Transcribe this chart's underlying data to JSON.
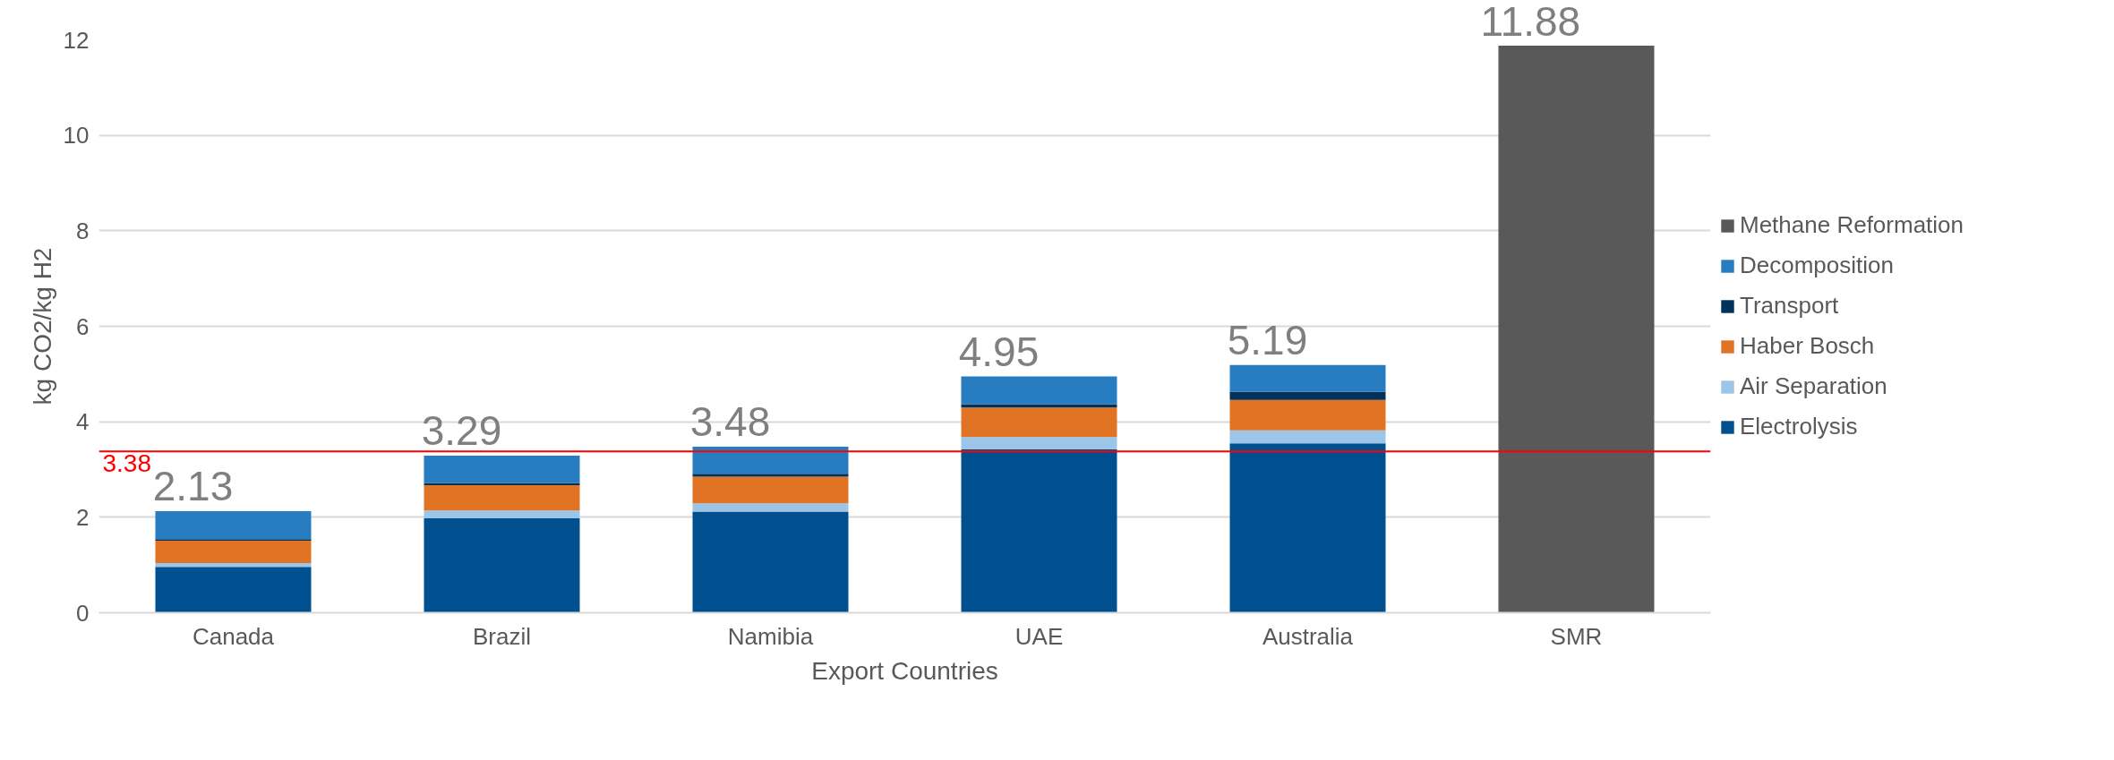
{
  "chart_data": {
    "type": "bar",
    "stacked": true,
    "xlabel": "Export Countries",
    "ylabel": "kg CO2/kg H2",
    "categories": [
      "Canada",
      "Brazil",
      "Namibia",
      "UAE",
      "Australia",
      "SMR"
    ],
    "series": [
      {
        "name": "Electrolysis",
        "color": "#00508f",
        "values": [
          0.96,
          1.98,
          2.12,
          3.42,
          3.55,
          null
        ]
      },
      {
        "name": "Air Separation",
        "color": "#9bc5e9",
        "values": [
          0.08,
          0.16,
          0.17,
          0.26,
          0.27,
          null
        ]
      },
      {
        "name": "Haber Bosch",
        "color": "#e17325",
        "values": [
          0.47,
          0.53,
          0.56,
          0.62,
          0.64,
          null
        ]
      },
      {
        "name": "Transport",
        "color": "#00325a",
        "values": [
          0.03,
          0.05,
          0.06,
          0.07,
          0.17,
          null
        ]
      },
      {
        "name": "Decomposition",
        "color": "#287dc0",
        "values": [
          0.59,
          0.57,
          0.57,
          0.58,
          0.56,
          null
        ]
      },
      {
        "name": "Methane Reformation",
        "color": "#595959",
        "values": [
          null,
          null,
          null,
          null,
          null,
          11.88
        ]
      }
    ],
    "totals": [
      "2.13",
      "3.29",
      "3.48",
      "4.95",
      "5.19",
      "11.88"
    ],
    "ylim": [
      0,
      12
    ],
    "yticks": [
      0,
      2,
      4,
      6,
      8,
      10,
      12
    ],
    "ref_lines": [
      {
        "axis": "y",
        "value": 3.38,
        "label": "3.38",
        "color": "#ff0000"
      }
    ],
    "grid": "y",
    "legend": "right"
  }
}
